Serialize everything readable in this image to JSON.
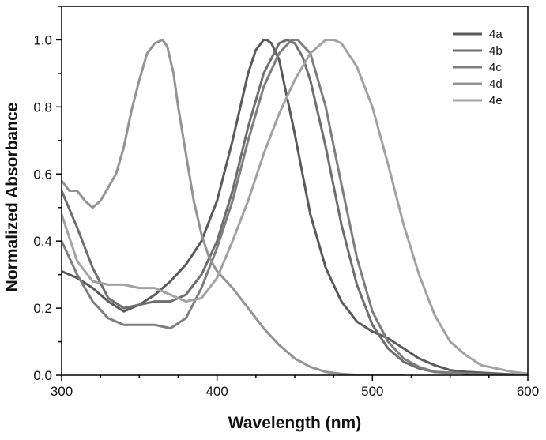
{
  "chart_data": {
    "type": "line",
    "title": "",
    "xlabel": "Wavelength (nm)",
    "ylabel": "Normalized Absorbance",
    "xlim": [
      300,
      600
    ],
    "ylim": [
      0.0,
      1.1
    ],
    "x_ticks": [
      300,
      400,
      500,
      600
    ],
    "x_tick_labels": [
      "300",
      "400",
      "500",
      "600"
    ],
    "y_ticks": [
      0.0,
      0.2,
      0.4,
      0.6,
      0.8,
      1.0
    ],
    "y_tick_labels": [
      "0.0",
      "0.2",
      "0.4",
      "0.6",
      "0.8",
      "1.0"
    ],
    "grid": false,
    "legend_position": "top-right",
    "series": [
      {
        "name": "4a",
        "color": "#5a5a5a",
        "x": [
          300,
          310,
          320,
          330,
          340,
          350,
          360,
          370,
          380,
          390,
          400,
          410,
          420,
          425,
          430,
          432,
          435,
          440,
          450,
          460,
          470,
          480,
          490,
          500,
          510,
          520,
          530,
          540,
          550,
          560,
          580,
          600
        ],
        "y": [
          0.31,
          0.29,
          0.26,
          0.22,
          0.19,
          0.21,
          0.24,
          0.28,
          0.33,
          0.4,
          0.52,
          0.7,
          0.9,
          0.97,
          1.0,
          1.0,
          0.99,
          0.94,
          0.72,
          0.48,
          0.32,
          0.22,
          0.16,
          0.13,
          0.11,
          0.08,
          0.05,
          0.03,
          0.015,
          0.01,
          0.005,
          0.0
        ]
      },
      {
        "name": "4b",
        "color": "#6e6e6e",
        "x": [
          300,
          310,
          320,
          330,
          340,
          350,
          360,
          370,
          380,
          390,
          400,
          410,
          420,
          430,
          440,
          445,
          450,
          455,
          460,
          470,
          480,
          490,
          500,
          510,
          520,
          530,
          540,
          560,
          580,
          600
        ],
        "y": [
          0.55,
          0.44,
          0.32,
          0.23,
          0.2,
          0.21,
          0.22,
          0.22,
          0.24,
          0.3,
          0.4,
          0.55,
          0.74,
          0.9,
          0.99,
          1.0,
          0.99,
          0.95,
          0.88,
          0.68,
          0.45,
          0.27,
          0.15,
          0.08,
          0.04,
          0.02,
          0.01,
          0.005,
          0.002,
          0.0
        ]
      },
      {
        "name": "4c",
        "color": "#7e7e7e",
        "x": [
          300,
          310,
          320,
          330,
          340,
          350,
          360,
          370,
          380,
          390,
          400,
          410,
          420,
          430,
          440,
          448,
          452,
          460,
          470,
          480,
          490,
          500,
          510,
          520,
          530,
          540,
          560,
          580,
          600
        ],
        "y": [
          0.4,
          0.3,
          0.22,
          0.17,
          0.15,
          0.15,
          0.15,
          0.14,
          0.17,
          0.26,
          0.38,
          0.52,
          0.7,
          0.86,
          0.96,
          1.0,
          1.0,
          0.96,
          0.8,
          0.57,
          0.35,
          0.19,
          0.1,
          0.05,
          0.025,
          0.01,
          0.005,
          0.002,
          0.0
        ]
      },
      {
        "name": "4d",
        "color": "#939393",
        "x": [
          300,
          305,
          310,
          315,
          320,
          325,
          330,
          335,
          340,
          345,
          350,
          355,
          360,
          365,
          368,
          372,
          375,
          380,
          385,
          390,
          395,
          400,
          410,
          420,
          430,
          440,
          450,
          460,
          470,
          480,
          490,
          500,
          510,
          520
        ],
        "y": [
          0.58,
          0.55,
          0.55,
          0.52,
          0.5,
          0.52,
          0.56,
          0.6,
          0.68,
          0.79,
          0.88,
          0.96,
          0.99,
          1.0,
          0.98,
          0.9,
          0.8,
          0.66,
          0.52,
          0.42,
          0.35,
          0.31,
          0.26,
          0.2,
          0.14,
          0.09,
          0.05,
          0.025,
          0.01,
          0.004,
          0.001,
          0.0,
          0.0,
          0.0
        ]
      },
      {
        "name": "4e",
        "color": "#a2a2a2",
        "x": [
          300,
          310,
          320,
          330,
          340,
          350,
          360,
          370,
          380,
          390,
          400,
          410,
          420,
          430,
          440,
          450,
          460,
          470,
          475,
          480,
          490,
          500,
          510,
          520,
          530,
          540,
          550,
          560,
          570,
          580,
          590,
          600
        ],
        "y": [
          0.48,
          0.34,
          0.28,
          0.27,
          0.27,
          0.26,
          0.26,
          0.24,
          0.22,
          0.23,
          0.29,
          0.4,
          0.52,
          0.66,
          0.78,
          0.88,
          0.96,
          1.0,
          1.0,
          0.99,
          0.92,
          0.8,
          0.63,
          0.45,
          0.3,
          0.18,
          0.1,
          0.06,
          0.03,
          0.02,
          0.01,
          0.005
        ]
      }
    ]
  }
}
